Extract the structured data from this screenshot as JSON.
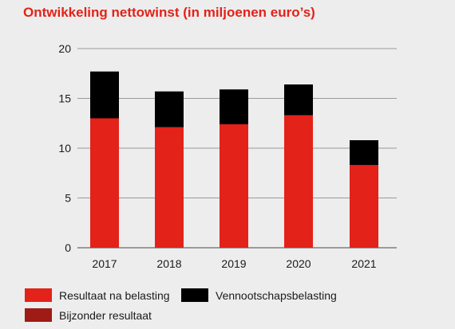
{
  "chart_data": {
    "type": "bar",
    "stacked": true,
    "title": "Ontwikkeling nettowinst (in miljoenen euro’s)",
    "xlabel": "",
    "ylabel": "",
    "categories": [
      "2017",
      "2018",
      "2019",
      "2020",
      "2021"
    ],
    "ylim": [
      0,
      20
    ],
    "yticks": [
      0,
      5,
      10,
      15,
      20
    ],
    "grid": true,
    "legend_position": "bottom",
    "series": [
      {
        "name": "Resultaat na belasting",
        "color": "#e32219",
        "values": [
          13.0,
          12.1,
          12.4,
          13.3,
          8.3
        ]
      },
      {
        "name": "Bijzonder resultaat",
        "color": "#9e1b16",
        "values": [
          0,
          0,
          0,
          0,
          0
        ]
      },
      {
        "name": "Vennootschapsbelasting",
        "color": "#000000",
        "values": [
          4.7,
          3.6,
          3.5,
          3.1,
          2.5
        ]
      }
    ]
  }
}
